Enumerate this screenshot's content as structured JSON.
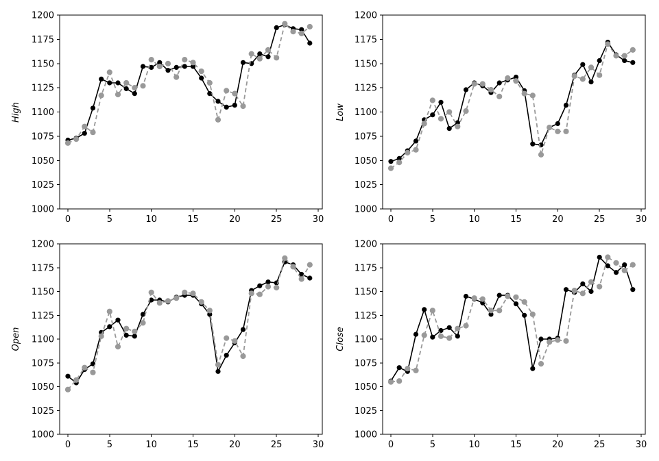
{
  "figure": {
    "background": "#ffffff"
  },
  "style": {
    "series_black_color": "#000000",
    "series_gray_color": "#999999",
    "frame_color": "#000000"
  },
  "x_values": [
    0,
    1,
    2,
    3,
    4,
    5,
    6,
    7,
    8,
    9,
    10,
    11,
    12,
    13,
    14,
    15,
    16,
    17,
    18,
    19,
    20,
    21,
    22,
    23,
    24,
    25,
    26,
    27,
    28,
    29
  ],
  "chart_data": [
    {
      "type": "line",
      "title": "",
      "ylabel": "High",
      "xlabel": "",
      "xlim": [
        -1,
        30.5
      ],
      "ylim": [
        1000,
        1200
      ],
      "xticks": [
        0,
        5,
        10,
        15,
        20,
        25,
        30
      ],
      "yticks": [
        1000,
        1025,
        1050,
        1075,
        1100,
        1125,
        1150,
        1175,
        1200
      ],
      "grid": false,
      "legend": "none",
      "series": [
        {
          "name": "black_solid",
          "color": "#000000",
          "line_style": "solid",
          "marker": "circle",
          "values": [
            1071,
            1073,
            1078,
            1104,
            1134,
            1130,
            1130,
            1124,
            1119,
            1147,
            1146,
            1151,
            1143,
            1146,
            1147,
            1147,
            1135,
            1119,
            1111,
            1105,
            1107,
            1151,
            1150,
            1160,
            1157,
            1187,
            1190,
            1186,
            1185,
            1171
          ]
        },
        {
          "name": "gray_dashed",
          "color": "#999999",
          "line_style": "dashed",
          "marker": "circle",
          "values": [
            1068,
            1072,
            1085,
            1079,
            1117,
            1141,
            1118,
            1130,
            1125,
            1127,
            1154,
            1147,
            1150,
            1136,
            1154,
            1151,
            1142,
            1130,
            1092,
            1122,
            1119,
            1106,
            1160,
            1155,
            1164,
            1156,
            1191,
            1183,
            1181,
            1188
          ]
        }
      ]
    },
    {
      "type": "line",
      "title": "",
      "ylabel": "Low",
      "xlabel": "",
      "xlim": [
        -1,
        30.5
      ],
      "ylim": [
        1000,
        1200
      ],
      "xticks": [
        0,
        5,
        10,
        15,
        20,
        25,
        30
      ],
      "yticks": [
        1000,
        1025,
        1050,
        1075,
        1100,
        1125,
        1150,
        1175,
        1200
      ],
      "grid": false,
      "legend": "none",
      "series": [
        {
          "name": "black_solid",
          "color": "#000000",
          "line_style": "solid",
          "marker": "circle",
          "values": [
            1049,
            1052,
            1060,
            1070,
            1092,
            1097,
            1110,
            1083,
            1089,
            1123,
            1130,
            1127,
            1120,
            1130,
            1133,
            1136,
            1122,
            1067,
            1066,
            1084,
            1088,
            1107,
            1138,
            1149,
            1131,
            1153,
            1172,
            1159,
            1153,
            1151
          ]
        },
        {
          "name": "gray_dashed",
          "color": "#999999",
          "line_style": "dashed",
          "marker": "circle",
          "values": [
            1042,
            1048,
            1058,
            1061,
            1088,
            1112,
            1093,
            1100,
            1085,
            1101,
            1129,
            1129,
            1123,
            1116,
            1135,
            1132,
            1119,
            1117,
            1056,
            1084,
            1080,
            1080,
            1137,
            1134,
            1146,
            1138,
            1170,
            1158,
            1158,
            1164
          ]
        }
      ]
    },
    {
      "type": "line",
      "title": "",
      "ylabel": "Open",
      "xlabel": "",
      "xlim": [
        -1,
        30.5
      ],
      "ylim": [
        1000,
        1200
      ],
      "xticks": [
        0,
        5,
        10,
        15,
        20,
        25,
        30
      ],
      "yticks": [
        1000,
        1025,
        1050,
        1075,
        1100,
        1125,
        1150,
        1175,
        1200
      ],
      "grid": false,
      "legend": "none",
      "series": [
        {
          "name": "black_solid",
          "color": "#000000",
          "line_style": "solid",
          "marker": "circle",
          "values": [
            1061,
            1054,
            1068,
            1074,
            1107,
            1113,
            1120,
            1104,
            1103,
            1126,
            1141,
            1141,
            1139,
            1144,
            1146,
            1146,
            1137,
            1126,
            1066,
            1083,
            1096,
            1110,
            1151,
            1156,
            1160,
            1159,
            1181,
            1178,
            1168,
            1164
          ]
        },
        {
          "name": "gray_dashed",
          "color": "#999999",
          "line_style": "dashed",
          "marker": "circle",
          "values": [
            1047,
            1057,
            1070,
            1065,
            1103,
            1129,
            1092,
            1111,
            1108,
            1117,
            1149,
            1138,
            1140,
            1143,
            1149,
            1148,
            1139,
            1130,
            1073,
            1101,
            1098,
            1082,
            1148,
            1147,
            1155,
            1154,
            1185,
            1176,
            1163,
            1178
          ]
        }
      ]
    },
    {
      "type": "line",
      "title": "",
      "ylabel": "Close",
      "xlabel": "",
      "xlim": [
        -1,
        30.5
      ],
      "ylim": [
        1000,
        1200
      ],
      "xticks": [
        0,
        5,
        10,
        15,
        20,
        25,
        30
      ],
      "yticks": [
        1000,
        1025,
        1050,
        1075,
        1100,
        1125,
        1150,
        1175,
        1200
      ],
      "grid": false,
      "legend": "none",
      "series": [
        {
          "name": "black_solid",
          "color": "#000000",
          "line_style": "solid",
          "marker": "circle",
          "values": [
            1056,
            1070,
            1066,
            1105,
            1131,
            1102,
            1109,
            1112,
            1103,
            1145,
            1142,
            1138,
            1126,
            1146,
            1146,
            1137,
            1125,
            1069,
            1100,
            1100,
            1101,
            1152,
            1149,
            1158,
            1150,
            1186,
            1177,
            1170,
            1178,
            1152
          ]
        },
        {
          "name": "gray_dashed",
          "color": "#999999",
          "line_style": "dashed",
          "marker": "circle",
          "values": [
            1055,
            1056,
            1069,
            1067,
            1104,
            1130,
            1103,
            1101,
            1111,
            1114,
            1143,
            1142,
            1130,
            1130,
            1145,
            1144,
            1139,
            1126,
            1074,
            1097,
            1099,
            1098,
            1151,
            1148,
            1160,
            1155,
            1186,
            1180,
            1172,
            1178
          ]
        }
      ]
    }
  ]
}
